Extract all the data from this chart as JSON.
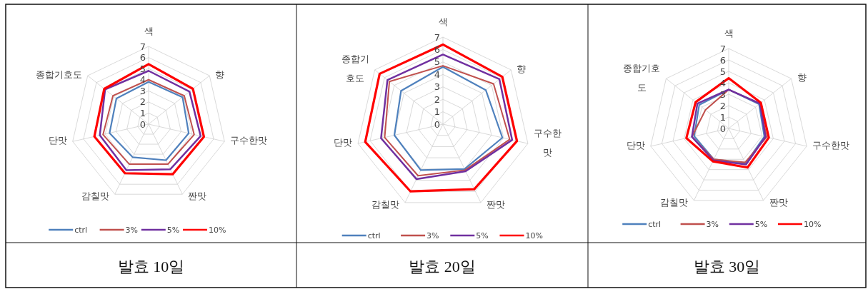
{
  "chart_data": [
    {
      "type": "radar",
      "title": "발효 10일",
      "categories": [
        "색",
        "향",
        "구수한맛",
        "짠맛",
        "감칠맛",
        "단맛",
        "종합기호도"
      ],
      "ylim": [
        0,
        7
      ],
      "yticks": [
        0,
        1,
        2,
        3,
        4,
        5,
        6,
        7
      ],
      "grid": true,
      "legend": "bottom",
      "series": [
        {
          "name": "ctrl",
          "color": "#4f81bd",
          "values": [
            3.8,
            3.9,
            3.7,
            3.6,
            3.3,
            3.6,
            3.7
          ]
        },
        {
          "name": "3%",
          "color": "#c0504d",
          "values": [
            4.0,
            4.1,
            4.2,
            4.0,
            4.0,
            4.2,
            4.1
          ]
        },
        {
          "name": "5%",
          "color": "#7030a0",
          "values": [
            4.8,
            4.7,
            4.8,
            4.5,
            4.6,
            4.5,
            5.0
          ]
        },
        {
          "name": "10%",
          "color": "#ff0000",
          "values": [
            5.4,
            5.1,
            5.1,
            5.0,
            4.9,
            5.0,
            5.1
          ]
        }
      ]
    },
    {
      "type": "radar",
      "title": "발효 20일",
      "categories": [
        "색",
        "향",
        "구수한맛",
        "짠맛",
        "감칠맛",
        "단맛",
        "종합기호도"
      ],
      "ylim": [
        0,
        7
      ],
      "yticks": [
        0,
        1,
        2,
        3,
        4,
        5,
        6,
        7
      ],
      "grid": true,
      "legend": "bottom",
      "series": [
        {
          "name": "ctrl",
          "color": "#4f81bd",
          "values": [
            4.6,
            4.4,
            4.9,
            4.0,
            4.1,
            4.0,
            4.3
          ]
        },
        {
          "name": "3%",
          "color": "#c0504d",
          "values": [
            4.7,
            5.2,
            5.5,
            4.1,
            4.6,
            4.8,
            5.5
          ]
        },
        {
          "name": "5%",
          "color": "#7030a0",
          "values": [
            5.6,
            5.8,
            5.7,
            4.2,
            4.9,
            5.1,
            5.7
          ]
        },
        {
          "name": "10%",
          "color": "#ff0000",
          "values": [
            6.4,
            6.1,
            6.1,
            5.8,
            6.0,
            6.4,
            6.5
          ]
        }
      ]
    },
    {
      "type": "radar",
      "title": "발효 30일",
      "categories": [
        "색",
        "향",
        "구수한맛",
        "짠맛",
        "감칠맛",
        "단맛",
        "종합기호도"
      ],
      "ylim": [
        0,
        7
      ],
      "yticks": [
        0,
        1,
        2,
        3,
        4,
        5,
        6,
        7
      ],
      "grid": true,
      "legend": "bottom",
      "series": [
        {
          "name": "ctrl",
          "color": "#4f81bd",
          "values": [
            3.4,
            3.4,
            3.2,
            3.4,
            3.0,
            3.1,
            3.3
          ]
        },
        {
          "name": "3%",
          "color": "#c0504d",
          "values": [
            3.4,
            3.5,
            3.4,
            3.3,
            3.0,
            3.3,
            2.6
          ]
        },
        {
          "name": "5%",
          "color": "#7030a0",
          "values": [
            3.4,
            3.5,
            3.3,
            3.5,
            3.1,
            3.3,
            3.5
          ]
        },
        {
          "name": "10%",
          "color": "#ff0000",
          "values": [
            4.4,
            3.6,
            3.6,
            3.8,
            3.2,
            3.8,
            3.7
          ]
        }
      ]
    }
  ]
}
